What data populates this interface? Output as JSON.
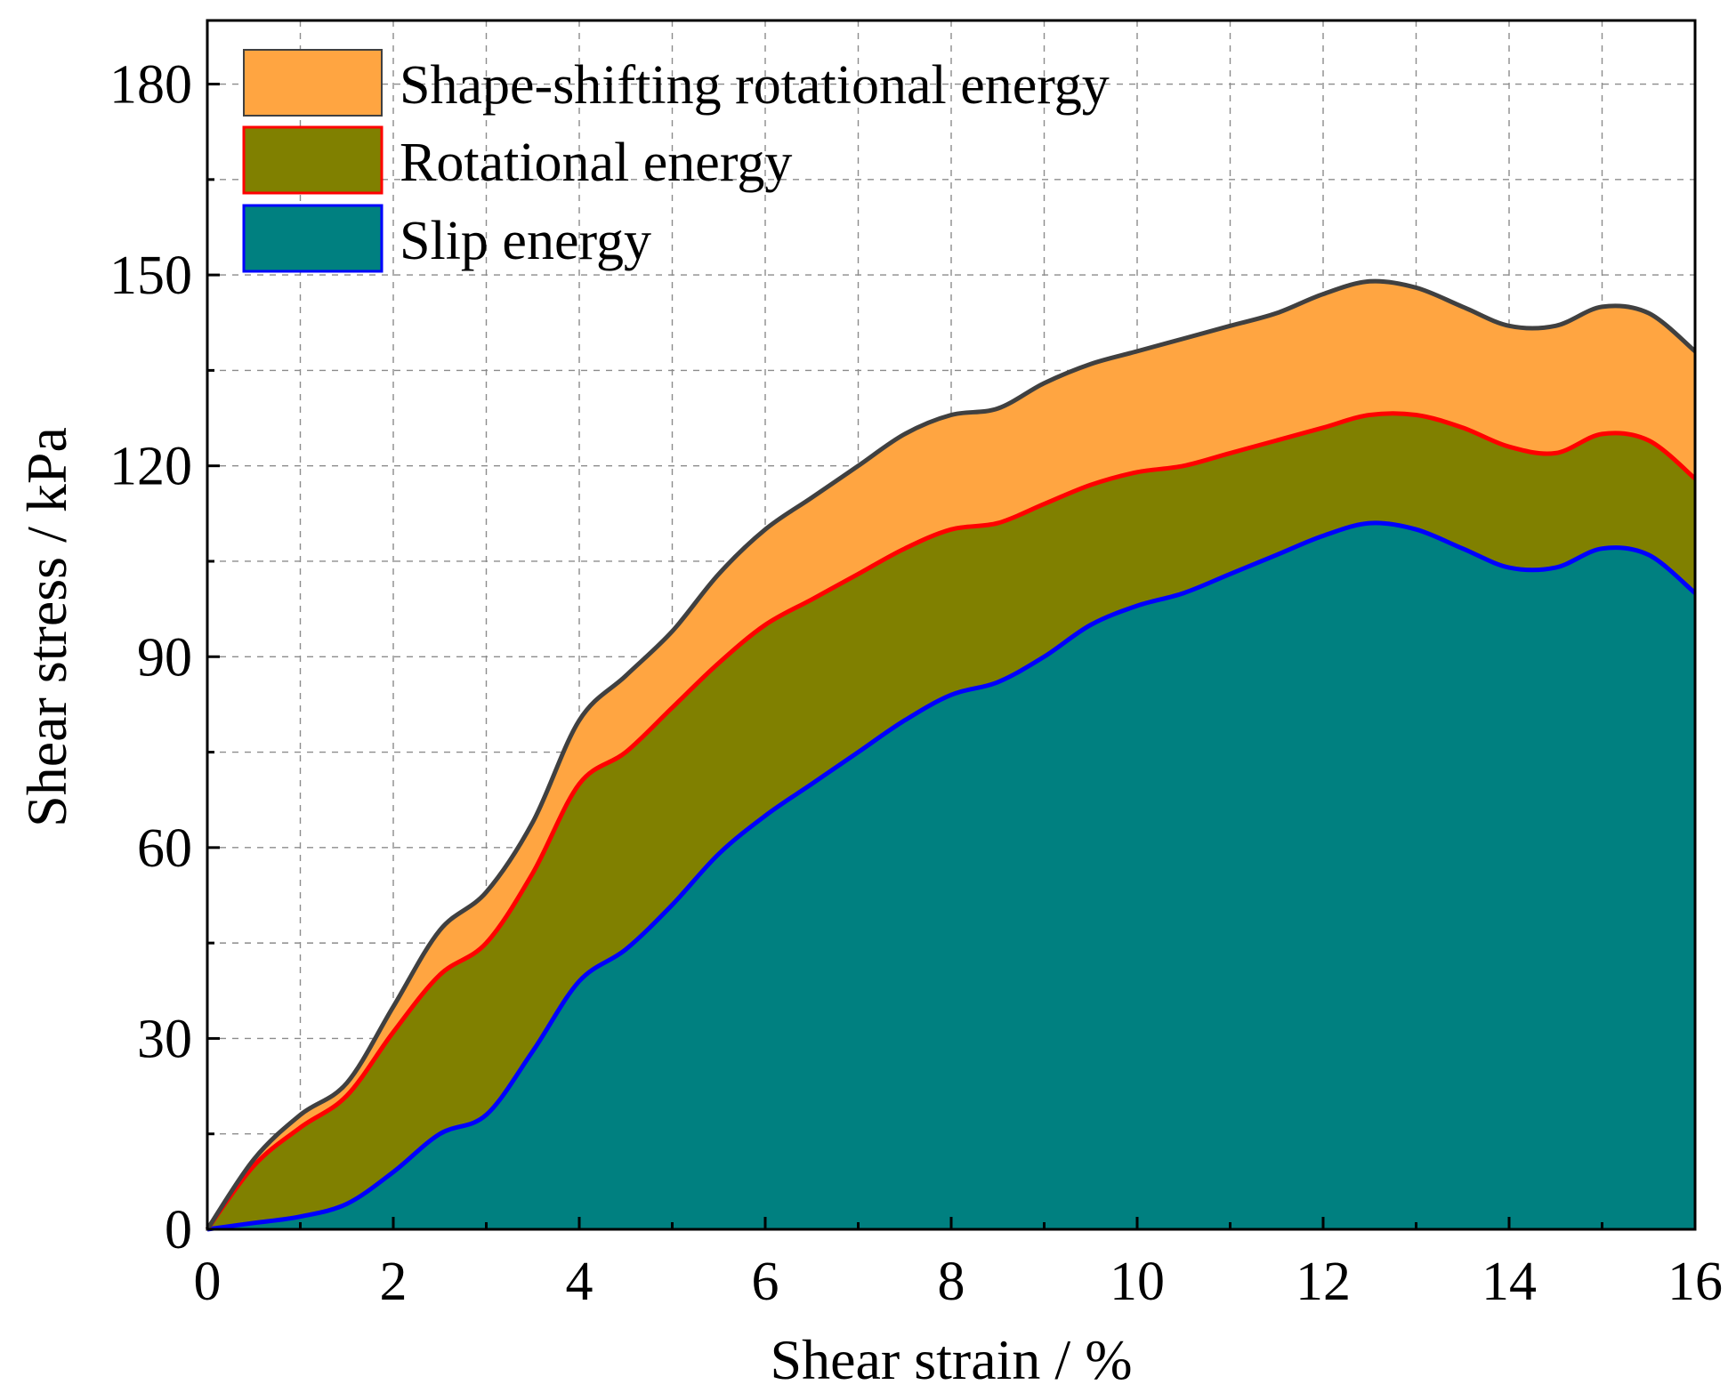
{
  "chart_data": {
    "type": "area",
    "stacked": true,
    "xlabel": "Shear strain / %",
    "ylabel": "Shear stress / kPa",
    "xlim": [
      0,
      16
    ],
    "ylim": [
      0,
      190
    ],
    "xticks": [
      0,
      2,
      4,
      6,
      8,
      10,
      12,
      14,
      16
    ],
    "yticks": [
      0,
      30,
      60,
      90,
      120,
      150,
      180
    ],
    "grid": true,
    "legend_position": "top-left",
    "x": [
      0,
      0.5,
      1,
      1.5,
      2,
      2.5,
      3,
      3.5,
      4,
      4.5,
      5,
      5.5,
      6,
      6.5,
      7,
      7.5,
      8,
      8.5,
      9,
      9.5,
      10,
      10.5,
      11,
      11.5,
      12,
      12.5,
      13,
      13.5,
      14,
      14.5,
      15,
      15.5,
      16
    ],
    "series": [
      {
        "name": "Slip energy",
        "fill": "#008080",
        "line": "#0000ff",
        "values": [
          0,
          1,
          2,
          4,
          9,
          15,
          18,
          28,
          39,
          44,
          51,
          59,
          65,
          70,
          75,
          80,
          84,
          86,
          90,
          95,
          98,
          100,
          103,
          106,
          109,
          111,
          110,
          107,
          104,
          104,
          107,
          106,
          100
        ]
      },
      {
        "name": "Rotational energy",
        "fill": "#808000",
        "line": "#ff0000",
        "values": [
          0,
          10,
          16,
          21,
          31,
          40,
          45,
          56,
          70,
          75,
          82,
          89,
          95,
          99,
          103,
          107,
          110,
          111,
          114,
          117,
          119,
          120,
          122,
          124,
          126,
          128,
          128,
          126,
          123,
          122,
          125,
          124,
          118
        ]
      },
      {
        "name": "Shape-shifting rotational energy",
        "fill": "#ffa541",
        "line": "#404040",
        "values": [
          0,
          11,
          18,
          23,
          35,
          47,
          53,
          64,
          80,
          87,
          94,
          103,
          110,
          115,
          120,
          125,
          128,
          129,
          133,
          136,
          138,
          140,
          142,
          144,
          147,
          149,
          148,
          145,
          142,
          142,
          145,
          144,
          138
        ]
      }
    ]
  }
}
